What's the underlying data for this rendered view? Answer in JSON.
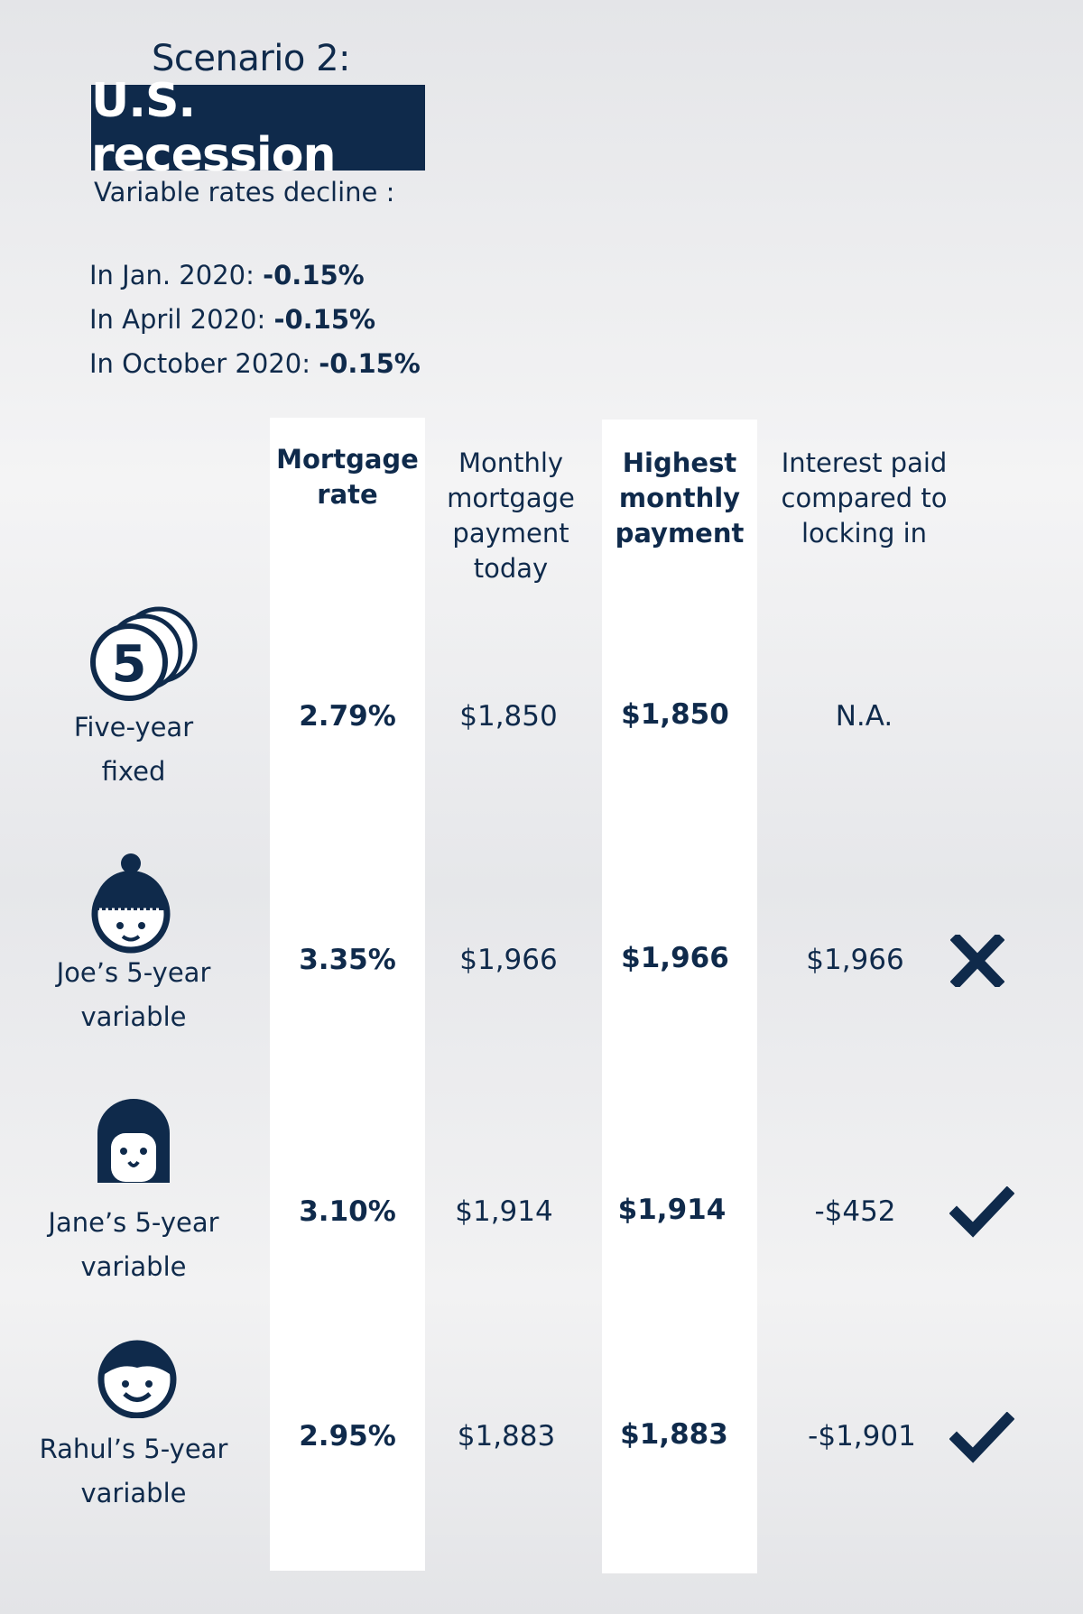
{
  "header": {
    "scenario": "Scenario 2:",
    "title": "U.S. recession",
    "subtitle": "Variable rates decline :",
    "declines": [
      {
        "label": "In Jan. 2020:",
        "value": "-0.15%"
      },
      {
        "label": "In April 2020:",
        "value": "-0.15%"
      },
      {
        "label": "In October 2020:",
        "value": "-0.15%"
      }
    ]
  },
  "columns": {
    "rate": [
      "Mortgage",
      "rate"
    ],
    "today": [
      "Monthly",
      "mortgage",
      "payment",
      "today"
    ],
    "highest": [
      "Highest",
      "monthly",
      "payment"
    ],
    "interest": [
      "Interest paid",
      "compared to",
      "locking in"
    ]
  },
  "rows": [
    {
      "label": [
        "Five-year",
        "fixed"
      ],
      "icon": "five-coins-icon",
      "rate": "2.79%",
      "today": "$1,850",
      "highest": "$1,850",
      "interest": "N.A.",
      "verdict": ""
    },
    {
      "label": [
        "Joe’s 5-year",
        "variable"
      ],
      "icon": "joe-avatar-icon",
      "rate": "3.35%",
      "today": "$1,966",
      "highest": "$1,966",
      "interest": "$1,966",
      "verdict": "cross-icon"
    },
    {
      "label": [
        "Jane’s 5-year",
        "variable"
      ],
      "icon": "jane-avatar-icon",
      "rate": "3.10%",
      "today": "$1,914",
      "highest": "$1,914",
      "interest": "-$452",
      "verdict": "check-icon"
    },
    {
      "label": [
        "Rahul’s 5-year",
        "variable"
      ],
      "icon": "rahul-avatar-icon",
      "rate": "2.95%",
      "today": "$1,883",
      "highest": "$1,883",
      "interest": "-$1,901",
      "verdict": "check-icon"
    }
  ],
  "colors": {
    "navy": "#0f2a4b",
    "background": "#ececee",
    "column": "#ffffff"
  }
}
